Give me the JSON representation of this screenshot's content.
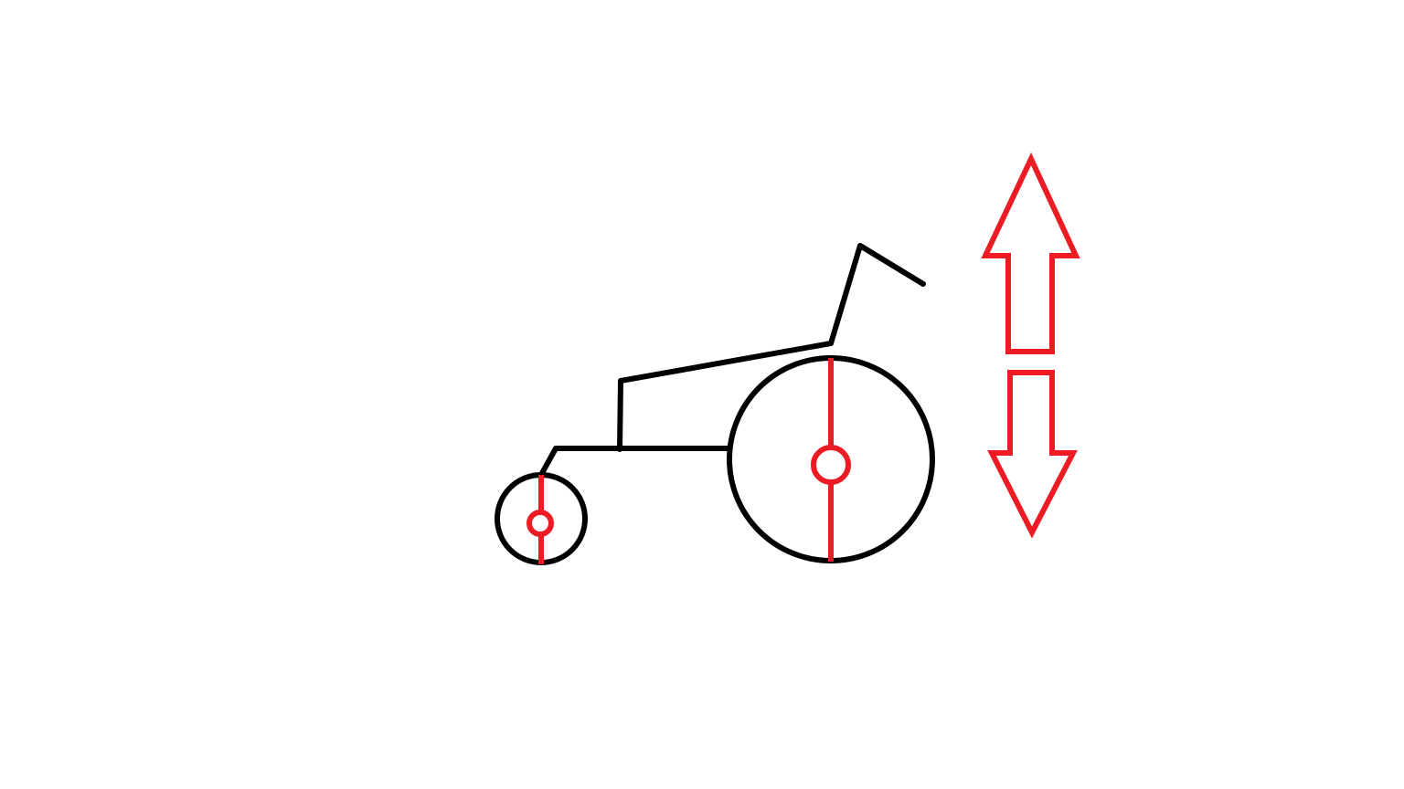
{
  "colors": {
    "background": "#ffffff",
    "frame": "#000000",
    "accent": "#ed1c24"
  },
  "diagram": {
    "subject": "wheelchair-icon",
    "parts": [
      "rear-wheel",
      "front-caster-wheel",
      "frame",
      "backrest-with-push-handle",
      "adjust-up-arrow-icon",
      "adjust-down-arrow-icon"
    ]
  }
}
